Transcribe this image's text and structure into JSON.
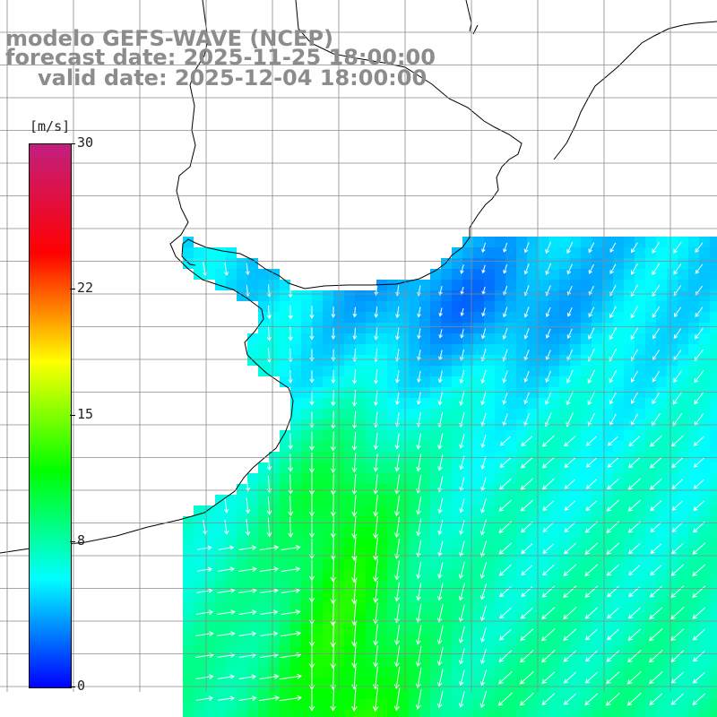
{
  "header": {
    "model": "modelo GEFS-WAVE (NCEP)",
    "forecast": "forecast date: 2025-11-25 18:00:00",
    "valid": "valid date: 2025-12-04 18:00:00"
  },
  "colorbar": {
    "unit": "[m/s]",
    "min": 0,
    "max": 30,
    "labels": [
      "30",
      "22",
      "15",
      "8",
      "0"
    ],
    "label_values": [
      30,
      22,
      15,
      8,
      0
    ],
    "stops": [
      "#0000ff",
      "#00ffff",
      "#00ff00",
      "#ffff00",
      "#ff0000",
      "#c21f80"
    ]
  },
  "map": {
    "variable": "wind speed and direction",
    "land_color": "#ffffff",
    "grid_color": "#8a8a8a",
    "coast_color": "#000000",
    "arrow_color": "#ffffff"
  }
}
